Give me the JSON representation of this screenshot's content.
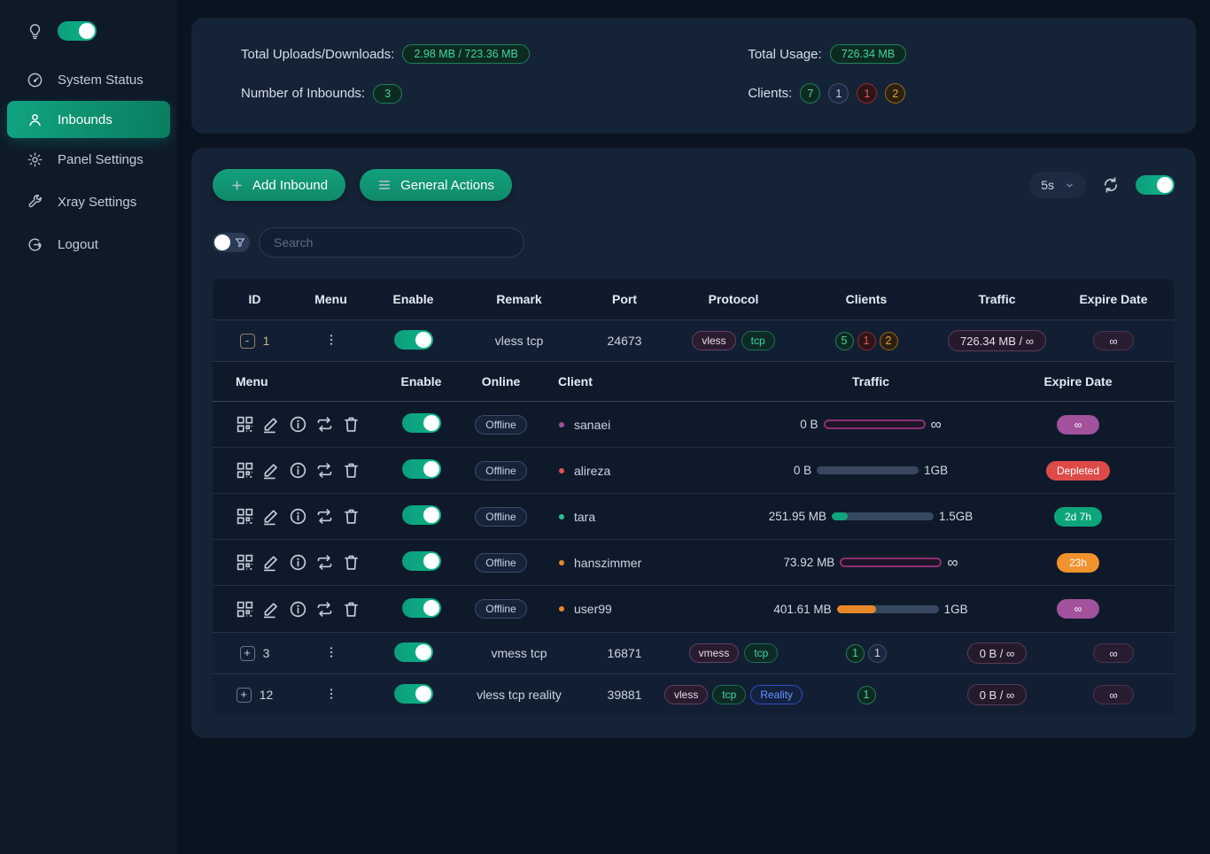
{
  "colors": {
    "accent_teal": "#0fa37e",
    "background": "#0a1320",
    "card": "#152337",
    "badge_green": "#3fd6a4",
    "badge_red": "#e25c5c",
    "badge_orange": "#e7a23b",
    "expire_orchid": "#a2519d",
    "expire_red": "#dd4b49",
    "expire_green": "#0ca57c",
    "expire_orange": "#f0922e",
    "bar_unlimited_border": "#8e2f72"
  },
  "icons": {
    "menu_dots": "vertical-ellipsis",
    "infinity_glyph": "∞",
    "expand_open": "-",
    "expand_closed": "+"
  },
  "sidebar": {
    "items": [
      {
        "label": "System Status"
      },
      {
        "label": "Inbounds"
      },
      {
        "label": "Panel Settings"
      },
      {
        "label": "Xray Settings"
      },
      {
        "label": "Logout"
      }
    ]
  },
  "stats": {
    "uploads_label": "Total Uploads/Downloads:",
    "uploads_value": "2.98 MB / 723.36 MB",
    "inbounds_label": "Number of Inbounds:",
    "inbounds_value": "3",
    "usage_label": "Total Usage:",
    "usage_value": "726.34 MB",
    "clients_label": "Clients:",
    "client_counts": [
      "7",
      "1",
      "1",
      "2"
    ]
  },
  "toolbar": {
    "add_inbound": "Add Inbound",
    "general_actions": "General Actions",
    "refresh_interval": "5s"
  },
  "search": {
    "placeholder": "Search"
  },
  "table": {
    "headers": {
      "id": "ID",
      "menu": "Menu",
      "enable": "Enable",
      "remark": "Remark",
      "port": "Port",
      "protocol": "Protocol",
      "clients": "Clients",
      "traffic": "Traffic",
      "expire": "Expire Date"
    },
    "sub_headers": {
      "menu": "Menu",
      "enable": "Enable",
      "online": "Online",
      "client": "Client",
      "traffic": "Traffic",
      "expire": "Expire Date"
    },
    "inbounds": [
      {
        "id": "1",
        "expand": "-",
        "remark": "vless tcp",
        "port": "24673",
        "protocols": [
          "vless",
          "tcp"
        ],
        "client_counts": [
          "5",
          "1",
          "2"
        ],
        "traffic": "726.34 MB / ∞",
        "expire": "∞"
      },
      {
        "id": "3",
        "expand": "+",
        "remark": "vmess tcp",
        "port": "16871",
        "protocols": [
          "vmess",
          "tcp"
        ],
        "client_counts": [
          "1",
          "1"
        ],
        "traffic": "0 B / ∞",
        "expire": "∞"
      },
      {
        "id": "12",
        "expand": "+",
        "remark": "vless tcp reality",
        "port": "39881",
        "protocols": [
          "vless",
          "tcp",
          "Reality"
        ],
        "client_counts": [
          "1"
        ],
        "traffic": "0 B / ∞",
        "expire": "∞"
      }
    ],
    "clients": [
      {
        "status": "Offline",
        "name": "sanaei",
        "used": "0 B",
        "total": "∞",
        "percent": 0,
        "expire": "∞"
      },
      {
        "status": "Offline",
        "name": "alireza",
        "used": "0 B",
        "total": "1GB",
        "percent": 0,
        "expire": "Depleted"
      },
      {
        "status": "Offline",
        "name": "tara",
        "used": "251.95 MB",
        "total": "1.5GB",
        "percent": 16,
        "expire": "2d 7h"
      },
      {
        "status": "Offline",
        "name": "hanszimmer",
        "used": "73.92 MB",
        "total": "∞",
        "percent": 0,
        "expire": "23h"
      },
      {
        "status": "Offline",
        "name": "user99",
        "used": "401.61 MB",
        "total": "1GB",
        "percent": 39,
        "expire": "∞"
      }
    ]
  }
}
